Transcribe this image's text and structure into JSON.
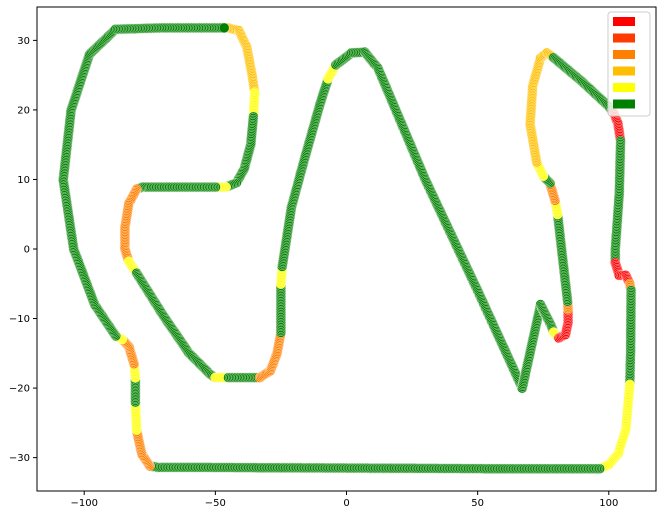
{
  "chart_data": {
    "type": "scatter",
    "xlim": [
      -118,
      118
    ],
    "ylim": [
      -34.8,
      34.8
    ],
    "x_ticks": [
      -100,
      -50,
      0,
      50,
      100
    ],
    "y_ticks": [
      -30,
      -20,
      -10,
      0,
      10,
      20,
      30
    ],
    "x_tick_labels": [
      "−100",
      "−50",
      "0",
      "50",
      "100"
    ],
    "y_tick_labels": [
      "−30",
      "−20",
      "−10",
      "0",
      "10",
      "20",
      "30"
    ],
    "grid": false,
    "legend": {
      "placement": "top-right",
      "labels": [
        "",
        "",
        "",
        "",
        "",
        ""
      ],
      "colors": [
        "#ff0000",
        "#ff3a00",
        "#ff7f00",
        "#ffbf00",
        "#ffff00",
        "#008000"
      ]
    },
    "colors": {
      "red": "#ff0000",
      "red_orange": "#ff3a00",
      "orange": "#ff7f00",
      "amber": "#ffbf00",
      "yellow": "#ffff00",
      "green": "#008000"
    },
    "track": [
      {
        "x": -45.0,
        "y": 31.8,
        "c": "amber"
      },
      {
        "x": -41.0,
        "y": 31.4,
        "c": "amber"
      },
      {
        "x": -38.0,
        "y": 29.0,
        "c": "amber"
      },
      {
        "x": -36.0,
        "y": 25.0,
        "c": "amber"
      },
      {
        "x": -35.0,
        "y": 22.5,
        "c": "yellow"
      },
      {
        "x": -35.5,
        "y": 19.0,
        "c": "green"
      },
      {
        "x": -36.5,
        "y": 15.0,
        "c": "green"
      },
      {
        "x": -39.0,
        "y": 11.5,
        "c": "green"
      },
      {
        "x": -42.0,
        "y": 9.5,
        "c": "green"
      },
      {
        "x": -46.0,
        "y": 8.9,
        "c": "yellow"
      },
      {
        "x": -50.0,
        "y": 8.9,
        "c": "green"
      },
      {
        "x": -65.0,
        "y": 8.9,
        "c": "green"
      },
      {
        "x": -78.0,
        "y": 8.9,
        "c": "green"
      },
      {
        "x": -80.0,
        "y": 8.6,
        "c": "orange"
      },
      {
        "x": -83.0,
        "y": 6.5,
        "c": "orange"
      },
      {
        "x": -84.5,
        "y": 3.0,
        "c": "orange"
      },
      {
        "x": -84.5,
        "y": 0.0,
        "c": "orange"
      },
      {
        "x": -83.0,
        "y": -1.8,
        "c": "yellow"
      },
      {
        "x": -80.0,
        "y": -3.5,
        "c": "green"
      },
      {
        "x": -70.0,
        "y": -9.5,
        "c": "green"
      },
      {
        "x": -60.0,
        "y": -15.0,
        "c": "green"
      },
      {
        "x": -52.0,
        "y": -18.0,
        "c": "green"
      },
      {
        "x": -50.0,
        "y": -18.5,
        "c": "yellow"
      },
      {
        "x": -45.0,
        "y": -18.5,
        "c": "green"
      },
      {
        "x": -36.0,
        "y": -18.5,
        "c": "green"
      },
      {
        "x": -33.0,
        "y": -18.5,
        "c": "orange"
      },
      {
        "x": -29.0,
        "y": -17.5,
        "c": "orange"
      },
      {
        "x": -26.5,
        "y": -15.0,
        "c": "orange"
      },
      {
        "x": -25.0,
        "y": -12.0,
        "c": "green"
      },
      {
        "x": -25.0,
        "y": -8.0,
        "c": "green"
      },
      {
        "x": -25.0,
        "y": -5.0,
        "c": "yellow"
      },
      {
        "x": -24.5,
        "y": -2.5,
        "c": "green"
      },
      {
        "x": -21.0,
        "y": 6.0,
        "c": "green"
      },
      {
        "x": -16.0,
        "y": 13.0,
        "c": "green"
      },
      {
        "x": -10.0,
        "y": 21.0,
        "c": "green"
      },
      {
        "x": -7.0,
        "y": 24.5,
        "c": "yellow"
      },
      {
        "x": -4.0,
        "y": 26.5,
        "c": "green"
      },
      {
        "x": 2.0,
        "y": 28.2,
        "c": "green"
      },
      {
        "x": 7.0,
        "y": 28.3,
        "c": "green"
      },
      {
        "x": 12.0,
        "y": 26.0,
        "c": "green"
      },
      {
        "x": 30.0,
        "y": 10.0,
        "c": "green"
      },
      {
        "x": 50.0,
        "y": -6.0,
        "c": "green"
      },
      {
        "x": 67.0,
        "y": -20.0,
        "c": "green"
      },
      {
        "x": 74.0,
        "y": -8.0,
        "c": "green"
      },
      {
        "x": 78.0,
        "y": -11.0,
        "c": "green"
      },
      {
        "x": 79.0,
        "y": -12.0,
        "c": "yellow"
      },
      {
        "x": 81.0,
        "y": -12.8,
        "c": "red"
      },
      {
        "x": 83.5,
        "y": -12.3,
        "c": "red"
      },
      {
        "x": 84.5,
        "y": -10.5,
        "c": "red"
      },
      {
        "x": 84.5,
        "y": -8.7,
        "c": "orange"
      },
      {
        "x": 84.3,
        "y": -7.5,
        "c": "green"
      },
      {
        "x": 82.0,
        "y": 0.0,
        "c": "green"
      },
      {
        "x": 80.5,
        "y": 5.0,
        "c": "yellow"
      },
      {
        "x": 79.5,
        "y": 7.0,
        "c": "orange"
      },
      {
        "x": 77.5,
        "y": 9.5,
        "c": "green"
      },
      {
        "x": 75.0,
        "y": 10.5,
        "c": "yellow"
      },
      {
        "x": 72.5,
        "y": 12.5,
        "c": "amber"
      },
      {
        "x": 70.0,
        "y": 18.0,
        "c": "amber"
      },
      {
        "x": 71.0,
        "y": 23.5,
        "c": "amber"
      },
      {
        "x": 74.0,
        "y": 27.5,
        "c": "amber"
      },
      {
        "x": 76.5,
        "y": 28.2,
        "c": "amber"
      },
      {
        "x": 79.0,
        "y": 27.5,
        "c": "green"
      },
      {
        "x": 90.0,
        "y": 24.0,
        "c": "green"
      },
      {
        "x": 100.0,
        "y": 20.5,
        "c": "green"
      },
      {
        "x": 102.0,
        "y": 19.5,
        "c": "red"
      },
      {
        "x": 103.5,
        "y": 18.0,
        "c": "red"
      },
      {
        "x": 104.5,
        "y": 15.5,
        "c": "green"
      },
      {
        "x": 104.0,
        "y": 8.0,
        "c": "green"
      },
      {
        "x": 102.5,
        "y": 0.0,
        "c": "green"
      },
      {
        "x": 102.5,
        "y": -2.0,
        "c": "red"
      },
      {
        "x": 104.0,
        "y": -3.8,
        "c": "red"
      },
      {
        "x": 106.5,
        "y": -3.8,
        "c": "red"
      },
      {
        "x": 108.0,
        "y": -5.0,
        "c": "orange"
      },
      {
        "x": 108.5,
        "y": -6.0,
        "c": "green"
      },
      {
        "x": 108.3,
        "y": -15.0,
        "c": "green"
      },
      {
        "x": 108.0,
        "y": -19.5,
        "c": "yellow"
      },
      {
        "x": 106.5,
        "y": -26.0,
        "c": "yellow"
      },
      {
        "x": 103.5,
        "y": -29.5,
        "c": "yellow"
      },
      {
        "x": 100.0,
        "y": -31.0,
        "c": "yellow"
      },
      {
        "x": 96.5,
        "y": -31.6,
        "c": "green"
      },
      {
        "x": 60.0,
        "y": -31.6,
        "c": "green"
      },
      {
        "x": 0.0,
        "y": -31.5,
        "c": "green"
      },
      {
        "x": -60.0,
        "y": -31.4,
        "c": "green"
      },
      {
        "x": -72.0,
        "y": -31.4,
        "c": "green"
      },
      {
        "x": -75.0,
        "y": -31.2,
        "c": "orange"
      },
      {
        "x": -78.0,
        "y": -29.5,
        "c": "orange"
      },
      {
        "x": -79.5,
        "y": -27.0,
        "c": "orange"
      },
      {
        "x": -80.0,
        "y": -26.0,
        "c": "yellow"
      },
      {
        "x": -80.5,
        "y": -22.0,
        "c": "green"
      },
      {
        "x": -80.5,
        "y": -20.0,
        "c": "green"
      },
      {
        "x": -80.5,
        "y": -18.5,
        "c": "yellow"
      },
      {
        "x": -81.0,
        "y": -16.5,
        "c": "orange"
      },
      {
        "x": -83.0,
        "y": -14.0,
        "c": "orange"
      },
      {
        "x": -85.5,
        "y": -13.0,
        "c": "yellow"
      },
      {
        "x": -88.0,
        "y": -12.5,
        "c": "green"
      },
      {
        "x": -96.0,
        "y": -8.0,
        "c": "green"
      },
      {
        "x": -104.0,
        "y": 0.0,
        "c": "green"
      },
      {
        "x": -108.0,
        "y": 10.0,
        "c": "green"
      },
      {
        "x": -105.0,
        "y": 20.0,
        "c": "green"
      },
      {
        "x": -98.0,
        "y": 28.0,
        "c": "green"
      },
      {
        "x": -88.0,
        "y": 31.6,
        "c": "green"
      },
      {
        "x": -70.0,
        "y": 31.8,
        "c": "green"
      },
      {
        "x": -46.0,
        "y": 31.8,
        "c": "green"
      }
    ]
  }
}
